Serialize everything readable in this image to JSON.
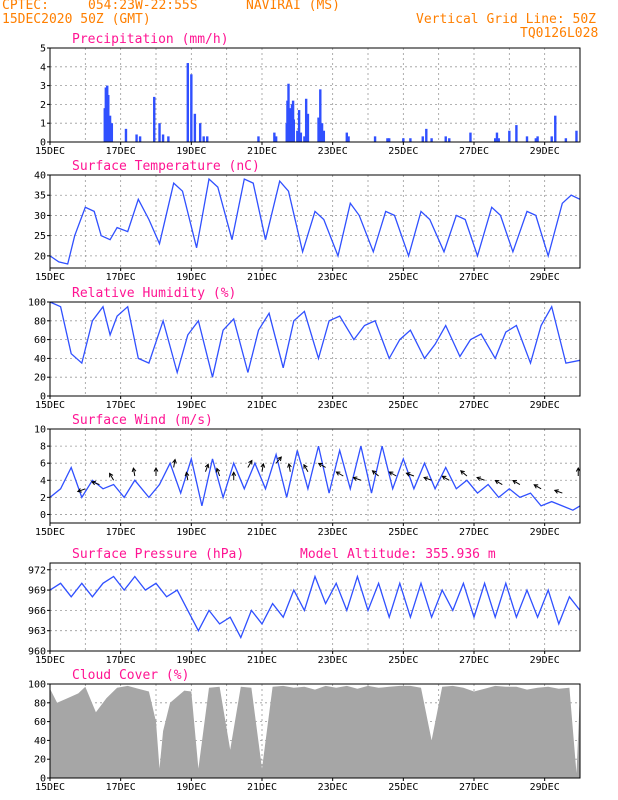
{
  "header": {
    "source": "CPTEC:",
    "coords": "054:23W-22:55S",
    "location": "NAVIRAI (MS)",
    "run": "15DEC2020 50Z (GMT)",
    "grid_note": "Vertical Grid Line: 50Z",
    "code": "TQ0126L028",
    "model_altitude": "Model Altitude: 355.936 m"
  },
  "colors": {
    "series": "#3050ff",
    "cloud": "#a6a6a6",
    "title": "#ff1493",
    "header": "#ff7f00"
  },
  "x_ticks": [
    "15DEC",
    "17DEC",
    "19DEC",
    "21DEC",
    "23DEC",
    "25DEC",
    "27DEC",
    "29DEC"
  ],
  "chart_data": [
    {
      "id": "precip",
      "type": "bar",
      "title": "Precipitation (mm/h)",
      "ylim": [
        0,
        5
      ],
      "yticks": [
        "0",
        "1",
        "2",
        "3",
        "4",
        "5"
      ],
      "x_range_days": [
        0,
        15
      ],
      "x": [
        1.55,
        1.58,
        1.62,
        1.65,
        1.7,
        1.75,
        2.15,
        2.45,
        2.55,
        2.95,
        3.1,
        3.2,
        3.35,
        3.9,
        4.0,
        4.1,
        4.25,
        4.35,
        4.45,
        5.9,
        6.35,
        6.4,
        6.7,
        6.72,
        6.75,
        6.8,
        6.82,
        6.85,
        6.88,
        6.9,
        7.0,
        7.05,
        7.1,
        7.2,
        7.25,
        7.3,
        7.6,
        7.65,
        7.7,
        7.75,
        8.4,
        8.45,
        9.2,
        9.55,
        9.6,
        10.0,
        10.2,
        10.55,
        10.65,
        10.8,
        11.2,
        11.3,
        11.9,
        12.6,
        12.65,
        12.7,
        13.0,
        13.2,
        13.5,
        13.75,
        13.8,
        14.2,
        14.3,
        14.6,
        14.9
      ],
      "values": [
        1.8,
        2.9,
        3.0,
        2.5,
        1.4,
        1.0,
        0.7,
        0.4,
        0.3,
        2.4,
        1.0,
        0.4,
        0.3,
        4.2,
        3.6,
        1.5,
        1.0,
        0.3,
        0.3,
        0.3,
        0.5,
        0.3,
        1.0,
        2.2,
        3.1,
        1.8,
        1.4,
        2.0,
        2.2,
        1.2,
        0.6,
        1.7,
        0.5,
        0.3,
        2.3,
        1.5,
        1.3,
        2.8,
        1.0,
        0.6,
        0.5,
        0.3,
        0.3,
        0.2,
        0.2,
        0.2,
        0.2,
        0.3,
        0.7,
        0.2,
        0.3,
        0.2,
        0.5,
        0.2,
        0.5,
        0.2,
        0.6,
        0.9,
        0.3,
        0.2,
        0.3,
        0.3,
        1.4,
        0.2,
        0.6
      ]
    },
    {
      "id": "temp",
      "type": "line",
      "title": "Surface Temperature (nC)",
      "ylim": [
        17,
        40
      ],
      "yticks": [
        "20",
        "25",
        "30",
        "35",
        "40"
      ],
      "ytick_values": [
        20,
        25,
        30,
        35,
        40
      ],
      "x_range_days": [
        0,
        15
      ],
      "x": [
        0,
        0.25,
        0.5,
        0.7,
        1.0,
        1.25,
        1.45,
        1.7,
        1.9,
        2.2,
        2.5,
        2.8,
        3.1,
        3.5,
        3.75,
        4.15,
        4.5,
        4.75,
        5.15,
        5.5,
        5.75,
        6.1,
        6.5,
        6.75,
        7.15,
        7.5,
        7.75,
        8.15,
        8.5,
        8.75,
        9.15,
        9.5,
        9.75,
        10.15,
        10.5,
        10.75,
        11.15,
        11.5,
        11.75,
        12.1,
        12.5,
        12.75,
        13.1,
        13.5,
        13.75,
        14.1,
        14.5,
        14.75,
        15.0
      ],
      "values": [
        20,
        18.5,
        18,
        25,
        32,
        31,
        25,
        24,
        27,
        26,
        34,
        29,
        23,
        38,
        36,
        22,
        39,
        37,
        24,
        39,
        38,
        24,
        38.5,
        36,
        21,
        31,
        29,
        20,
        33,
        30,
        21,
        31,
        30,
        20,
        31,
        29,
        21,
        30,
        29,
        20,
        32,
        30,
        21,
        31,
        30,
        20,
        33,
        35,
        34
      ]
    },
    {
      "id": "rh",
      "type": "line",
      "title": "Relative Humidity (%)",
      "ylim": [
        0,
        100
      ],
      "yticks": [
        "0",
        "20",
        "40",
        "60",
        "80",
        "100"
      ],
      "ytick_values": [
        0,
        20,
        40,
        60,
        80,
        100
      ],
      "x_range_days": [
        0,
        15
      ],
      "x": [
        0,
        0.3,
        0.6,
        0.9,
        1.2,
        1.5,
        1.7,
        1.9,
        2.2,
        2.5,
        2.8,
        3.2,
        3.6,
        3.9,
        4.2,
        4.6,
        4.9,
        5.2,
        5.6,
        5.9,
        6.2,
        6.6,
        6.9,
        7.2,
        7.6,
        7.9,
        8.2,
        8.6,
        8.9,
        9.2,
        9.6,
        9.9,
        10.2,
        10.6,
        10.9,
        11.2,
        11.6,
        11.9,
        12.2,
        12.6,
        12.9,
        13.2,
        13.6,
        13.9,
        14.2,
        14.6,
        15.0
      ],
      "values": [
        100,
        95,
        45,
        35,
        80,
        95,
        65,
        85,
        95,
        40,
        35,
        80,
        25,
        65,
        80,
        20,
        70,
        82,
        25,
        70,
        88,
        30,
        80,
        90,
        40,
        80,
        85,
        60,
        75,
        80,
        40,
        60,
        70,
        40,
        55,
        75,
        42,
        60,
        66,
        40,
        68,
        75,
        35,
        75,
        95,
        35,
        38
      ]
    },
    {
      "id": "wind",
      "type": "line",
      "title": "Surface Wind (m/s)",
      "ylim": [
        -1,
        10
      ],
      "yticks": [
        "0",
        "2",
        "4",
        "6",
        "8",
        "10"
      ],
      "ytick_values": [
        0,
        2,
        4,
        6,
        8,
        10
      ],
      "x_range_days": [
        0,
        15
      ],
      "x": [
        0,
        0.3,
        0.6,
        0.9,
        1.2,
        1.5,
        1.8,
        2.1,
        2.4,
        2.8,
        3.1,
        3.4,
        3.7,
        4.0,
        4.3,
        4.6,
        4.9,
        5.2,
        5.5,
        5.8,
        6.1,
        6.4,
        6.7,
        7.0,
        7.3,
        7.6,
        7.9,
        8.2,
        8.5,
        8.8,
        9.1,
        9.4,
        9.7,
        10.0,
        10.3,
        10.6,
        10.9,
        11.2,
        11.5,
        11.8,
        12.1,
        12.4,
        12.7,
        13.0,
        13.3,
        13.6,
        13.9,
        14.2,
        14.5,
        14.8,
        15.0
      ],
      "values": [
        2,
        3,
        5.5,
        2,
        4,
        3,
        3.5,
        2,
        4,
        2,
        3.5,
        6,
        2.5,
        6.5,
        1,
        6.5,
        2,
        6,
        3,
        6,
        3,
        7,
        2,
        7.5,
        3,
        8,
        2.5,
        7.5,
        3,
        8,
        2.5,
        8,
        3,
        6.5,
        3,
        6,
        3,
        5.5,
        3,
        4,
        2.5,
        3.5,
        2,
        3,
        2,
        2.5,
        1,
        1.5,
        1,
        0.5,
        1
      ],
      "arrows_days": [
        1.0,
        1.4,
        1.8,
        2.4,
        3.0,
        3.5,
        3.9,
        4.4,
        4.8,
        5.2,
        5.6,
        6.0,
        6.4,
        6.8,
        7.3,
        7.8,
        8.3,
        8.8,
        9.3,
        9.8,
        10.3,
        10.8,
        11.3,
        11.8,
        12.3,
        12.8,
        13.3,
        13.9,
        14.5,
        14.95
      ],
      "arrows_level": [
        3,
        3.5,
        4,
        4.5,
        4.5,
        5.5,
        4,
        5,
        4.5,
        4,
        5.5,
        5,
        6,
        5,
        5,
        5.5,
        4.5,
        4,
        4.5,
        4.5,
        4.5,
        4,
        4,
        4.5,
        4,
        3.5,
        3.5,
        3,
        2.5,
        4.5
      ],
      "arrows_dir_deg": [
        200,
        160,
        120,
        100,
        90,
        80,
        100,
        70,
        110,
        90,
        60,
        80,
        50,
        100,
        120,
        150,
        150,
        160,
        140,
        150,
        160,
        160,
        150,
        140,
        160,
        150,
        150,
        150,
        160,
        90
      ]
    },
    {
      "id": "pres",
      "type": "line",
      "title": "Surface Pressure (hPa)",
      "ylim": [
        960,
        973
      ],
      "yticks": [
        "960",
        "963",
        "966",
        "969",
        "972"
      ],
      "ytick_values": [
        960,
        963,
        966,
        969,
        972
      ],
      "x_range_days": [
        0,
        15
      ],
      "x": [
        0,
        0.3,
        0.6,
        0.9,
        1.2,
        1.5,
        1.8,
        2.1,
        2.4,
        2.7,
        3.0,
        3.3,
        3.6,
        3.9,
        4.2,
        4.5,
        4.8,
        5.1,
        5.4,
        5.7,
        6.0,
        6.3,
        6.6,
        6.9,
        7.2,
        7.5,
        7.8,
        8.1,
        8.4,
        8.7,
        9.0,
        9.3,
        9.6,
        9.9,
        10.2,
        10.5,
        10.8,
        11.1,
        11.4,
        11.7,
        12.0,
        12.3,
        12.6,
        12.9,
        13.2,
        13.5,
        13.8,
        14.1,
        14.4,
        14.7,
        15.0
      ],
      "values": [
        969,
        970,
        968,
        970,
        968,
        970,
        971,
        969,
        971,
        969,
        970,
        968,
        969,
        966,
        963,
        966,
        964,
        965,
        962,
        966,
        964,
        967,
        965,
        969,
        966,
        971,
        967,
        970,
        966,
        971,
        966,
        970,
        965,
        970,
        965,
        970,
        965,
        969,
        966,
        970,
        965,
        970,
        965,
        970,
        965,
        969,
        965,
        969,
        964,
        968,
        966
      ]
    },
    {
      "id": "cloud",
      "type": "area",
      "title": "Cloud Cover (%)",
      "ylim": [
        0,
        100
      ],
      "yticks": [
        "0",
        "20",
        "40",
        "60",
        "80",
        "100"
      ],
      "ytick_values": [
        0,
        20,
        40,
        60,
        80,
        100
      ],
      "x_range_days": [
        0,
        15
      ],
      "x": [
        0,
        0.2,
        0.5,
        0.8,
        1.0,
        1.3,
        1.6,
        1.9,
        2.2,
        2.5,
        2.8,
        3.0,
        3.1,
        3.2,
        3.4,
        3.8,
        4.0,
        4.2,
        4.5,
        4.8,
        5.1,
        5.4,
        5.7,
        6.0,
        6.3,
        6.6,
        6.9,
        7.2,
        7.5,
        7.8,
        8.1,
        8.4,
        8.7,
        9.0,
        9.3,
        9.6,
        9.9,
        10.2,
        10.5,
        10.8,
        11.1,
        11.4,
        11.7,
        12.0,
        12.3,
        12.6,
        12.9,
        13.2,
        13.5,
        13.8,
        14.1,
        14.4,
        14.7,
        14.9,
        15.0
      ],
      "values": [
        95,
        80,
        85,
        90,
        97,
        70,
        85,
        96,
        98,
        95,
        92,
        60,
        10,
        50,
        80,
        93,
        92,
        10,
        96,
        97,
        30,
        97,
        96,
        10,
        97,
        98,
        96,
        97,
        94,
        98,
        96,
        98,
        95,
        98,
        96,
        97,
        98,
        98,
        96,
        40,
        97,
        98,
        96,
        92,
        95,
        98,
        97,
        97,
        94,
        96,
        97,
        95,
        96,
        5,
        90
      ]
    }
  ]
}
